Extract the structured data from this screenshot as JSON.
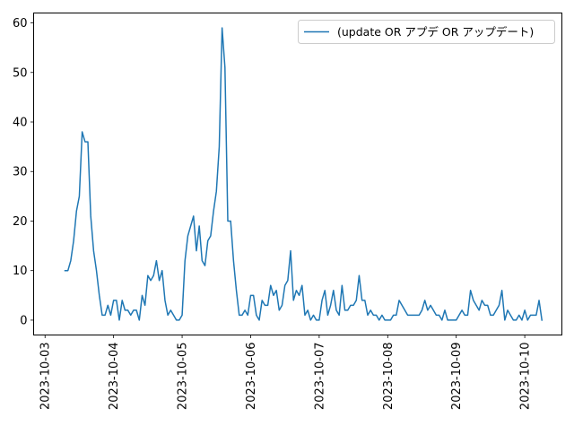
{
  "chart_data": {
    "type": "line",
    "title": "",
    "xlabel": "",
    "ylabel": "",
    "x_axis": {
      "type": "time",
      "ticks": [
        "2023-10-03",
        "2023-10-04",
        "2023-10-05",
        "2023-10-06",
        "2023-10-07",
        "2023-10-08",
        "2023-10-09",
        "2023-10-10"
      ],
      "range": [
        "2023-10-02 20:00",
        "2023-10-10 13:00"
      ]
    },
    "y_axis": {
      "ticks": [
        0,
        10,
        20,
        30,
        40,
        50,
        60
      ],
      "range": [
        -3,
        62
      ]
    },
    "grid": false,
    "legend": {
      "position": "top-right",
      "entries": [
        "(update OR アプデ OR アップデート)"
      ]
    },
    "series": [
      {
        "name": "(update OR アプデ OR アップデート)",
        "color": "#1f77b4",
        "start": "2023-10-03 07:00",
        "interval_hours": 1,
        "values": [
          10,
          10,
          12,
          16,
          22,
          25,
          38,
          36,
          36,
          21,
          14,
          10,
          5,
          1,
          1,
          3,
          1,
          4,
          4,
          0,
          4,
          2,
          2,
          1,
          2,
          2,
          0,
          5,
          3,
          9,
          8,
          9,
          12,
          8,
          10,
          4,
          1,
          2,
          1,
          0,
          0,
          1,
          12,
          17,
          19,
          21,
          14,
          19,
          12,
          11,
          16,
          17,
          22,
          26,
          35,
          59,
          51,
          20,
          20,
          12,
          6,
          1,
          1,
          2,
          1,
          5,
          5,
          1,
          0,
          4,
          3,
          3,
          7,
          5,
          6,
          2,
          3,
          7,
          8,
          14,
          4,
          6,
          5,
          7,
          1,
          2,
          0,
          1,
          0,
          0,
          4,
          6,
          1,
          3,
          6,
          2,
          1,
          7,
          2,
          2,
          3,
          3,
          4,
          9,
          4,
          4,
          1,
          2,
          1,
          1,
          0,
          1,
          0,
          0,
          0,
          1,
          1,
          4,
          3,
          2,
          1,
          1,
          1,
          1,
          1,
          2,
          4,
          2,
          3,
          2,
          1,
          1,
          0,
          2,
          0,
          0,
          0,
          0,
          1,
          2,
          1,
          1,
          6,
          4,
          3,
          2,
          4,
          3,
          3,
          1,
          1,
          2,
          3,
          6,
          0,
          2,
          1,
          0,
          0,
          1,
          0,
          2,
          0,
          1,
          1,
          1,
          4,
          0
        ]
      }
    ]
  }
}
